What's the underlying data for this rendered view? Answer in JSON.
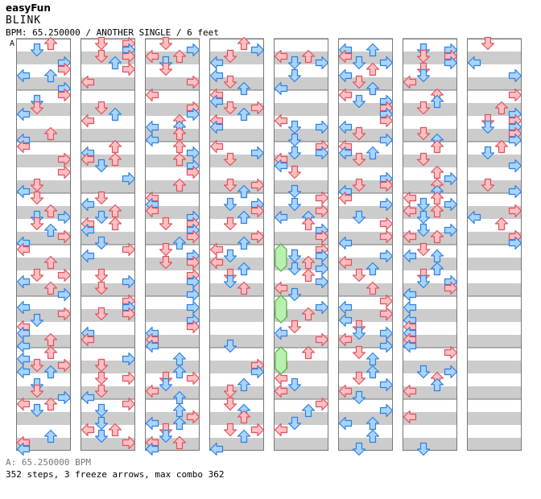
{
  "site_title": "easyFun",
  "song_title": "BLINK",
  "info": "BPM: 65.250000 / ANOTHER SINGLE / 6 feet",
  "bpm_marker": "A",
  "bpm_footer": "A: 65.250000 BPM",
  "stats": "352 steps, 3 freeze arrows, max combo 362",
  "colors": {
    "red_fill": "#ffc0c0",
    "red_stroke": "#e05060",
    "blue_fill": "#a8d4ff",
    "blue_stroke": "#2f7fe0",
    "freeze_fill": "#b8f0b0",
    "freeze_stroke": "#50b040",
    "band_gray": "#cccccc",
    "grid_line": "#777777"
  },
  "chart_data": {
    "type": "step-chart",
    "columns": 8,
    "measures_per_column": 8,
    "lanes": [
      "left",
      "down",
      "up",
      "right"
    ],
    "total_steps": 352,
    "freeze_arrows": 3,
    "max_combo": 362
  }
}
